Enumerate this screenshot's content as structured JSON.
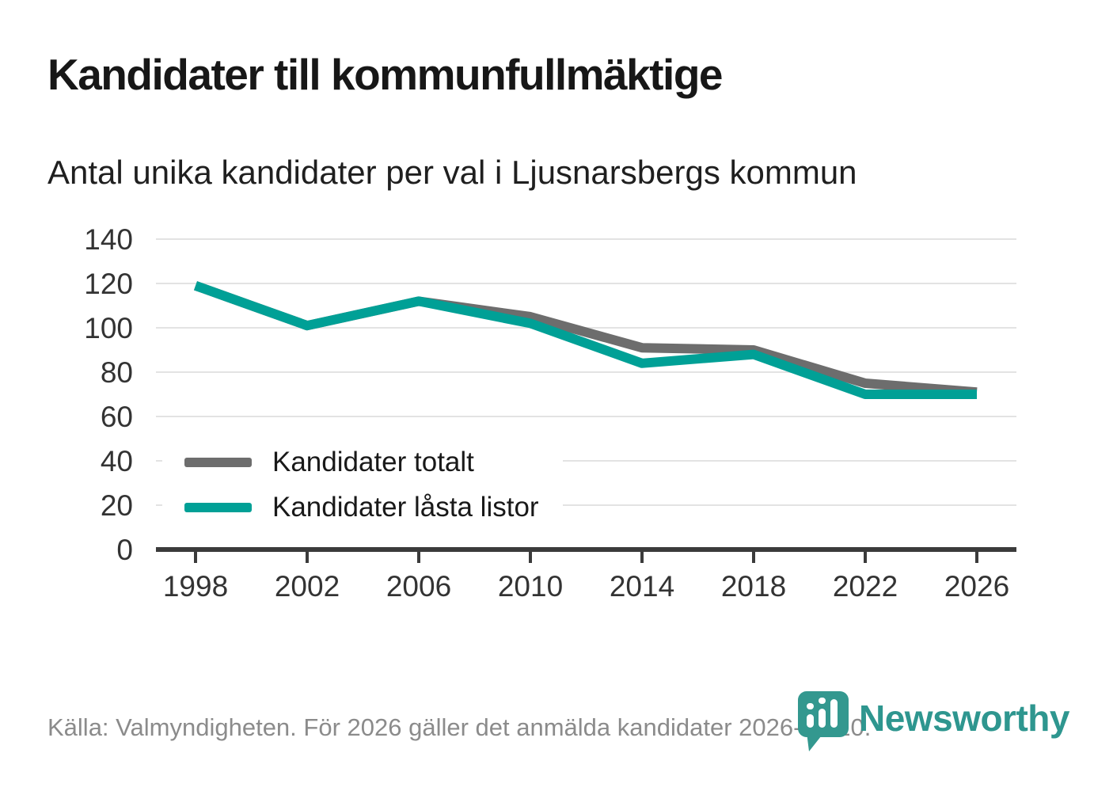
{
  "page": {
    "title": "Kandidater till kommunfullmäktige",
    "subtitle": "Antal unika kandidater per val i Ljusnarsbergs kommun",
    "source": "Källa: Valmyndigheten. För 2026 gäller det anmälda kandidater 2026-04-10.",
    "brand": "Newsworthy"
  },
  "colors": {
    "series_total": "#6d6d6d",
    "series_locked": "#00a096",
    "grid": "#e3e3e3",
    "axis": "#3b3b3b",
    "tick_text": "#333333",
    "muted_text": "#8b8b8b",
    "logo_teal": "#33988f",
    "wordmark_teal": "#2e968f"
  },
  "chart_data": {
    "type": "line",
    "x": [
      1998,
      2002,
      2006,
      2010,
      2014,
      2018,
      2022,
      2026
    ],
    "series": [
      {
        "name": "Kandidater totalt",
        "color": "#6d6d6d",
        "values": [
          119,
          101,
          112,
          105,
          91,
          90,
          75,
          71
        ]
      },
      {
        "name": "Kandidater låsta listor",
        "color": "#00a096",
        "values": [
          119,
          101,
          112,
          102,
          84,
          88,
          70,
          70
        ]
      }
    ],
    "title": "Kandidater till kommunfullmäktige",
    "subtitle": "Antal unika kandidater per val i Ljusnarsbergs kommun",
    "xlabel": "",
    "ylabel": "",
    "ylim": [
      0,
      140
    ],
    "yticks": [
      0,
      20,
      40,
      60,
      80,
      100,
      120,
      140
    ],
    "grid": "horizontal",
    "legend_position": "inside-bottom-left"
  }
}
